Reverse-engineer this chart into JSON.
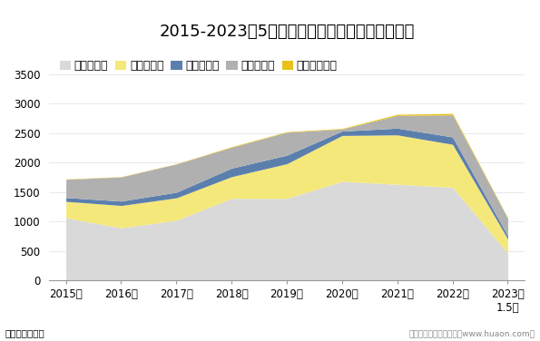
{
  "title": "2015-2023年5月福建省各发电类型发电量统计图",
  "xlabel_unit": "单位：亿千瓦时",
  "footer": "制图：华经产业研究院（www.huaon.com）",
  "years": [
    "2015年",
    "2016年",
    "2017年",
    "2018年",
    "2019年",
    "2020年",
    "2021年",
    "2022年",
    "2023年\n1.5月"
  ],
  "series": [
    {
      "name": "火力发电量",
      "color": "#d9d9d9",
      "values": [
        1060,
        890,
        1020,
        1390,
        1390,
        1680,
        1630,
        1580,
        460
      ]
    },
    {
      "name": "核能发电量",
      "color": "#f5e87a",
      "values": [
        280,
        380,
        380,
        370,
        590,
        780,
        840,
        730,
        240
      ]
    },
    {
      "name": "风力发电量",
      "color": "#5b7fad",
      "values": [
        65,
        75,
        95,
        145,
        145,
        75,
        115,
        125,
        55
      ]
    },
    {
      "name": "水力发电量",
      "color": "#b0b0b0",
      "values": [
        310,
        410,
        480,
        355,
        390,
        35,
        215,
        375,
        295
      ]
    },
    {
      "name": "太阳能发电量",
      "color": "#e8c21a",
      "values": [
        5,
        5,
        5,
        10,
        10,
        10,
        20,
        25,
        10
      ]
    }
  ],
  "ylim": [
    0,
    3500
  ],
  "yticks": [
    0,
    500,
    1000,
    1500,
    2000,
    2500,
    3000,
    3500
  ],
  "bg_color": "#ffffff",
  "title_fontsize": 13,
  "legend_fontsize": 9,
  "tick_fontsize": 8.5
}
